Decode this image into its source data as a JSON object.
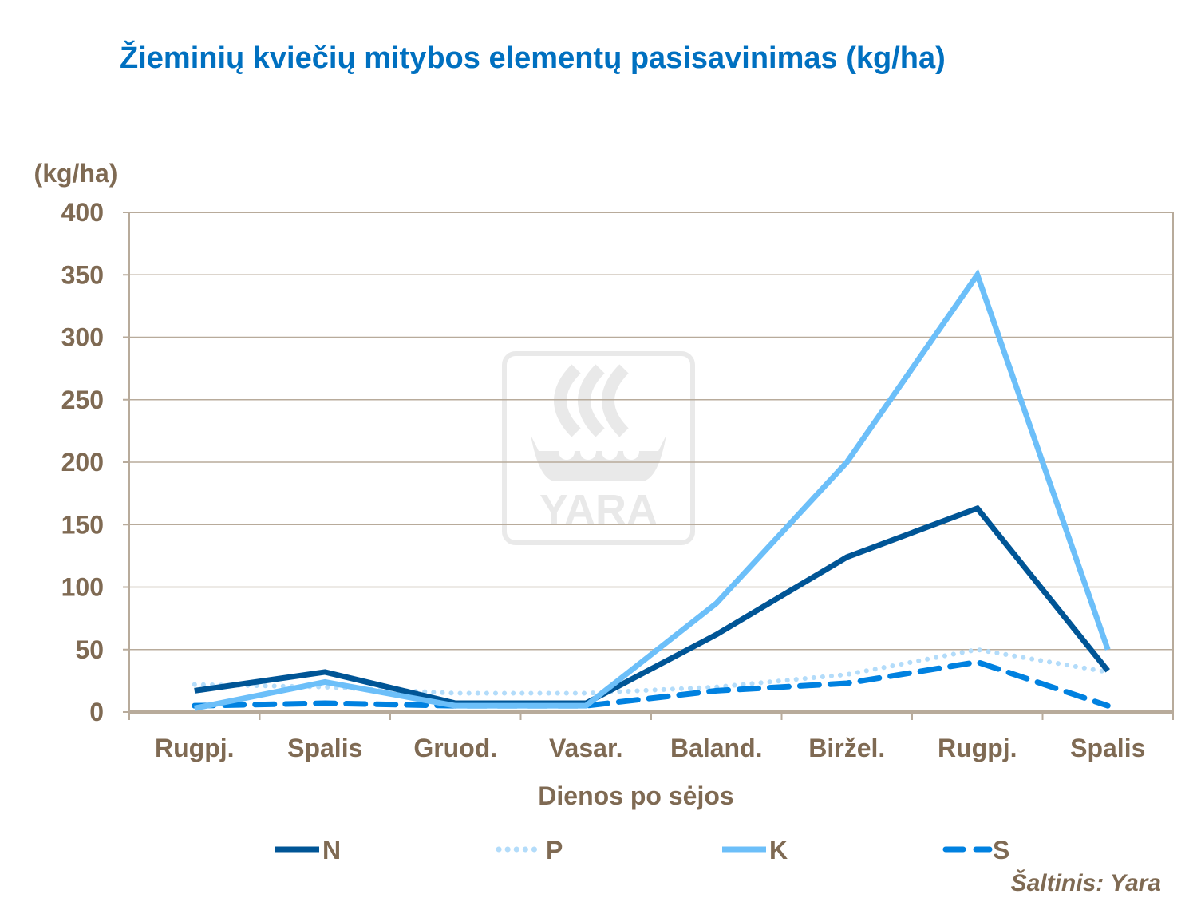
{
  "chart_data": {
    "type": "line",
    "title": "Žieminių kviečių mitybos elementų pasisavinimas (kg/ha)",
    "ylabel": "(kg/ha)",
    "xlabel": "Dienos po sėjos",
    "categories": [
      "Rugpj.",
      "Spalis",
      "Gruod.",
      "Vasar.",
      "Baland.",
      "Biržel.",
      "Rugpj.",
      "Spalis"
    ],
    "ylim": [
      0,
      400
    ],
    "yticks": [
      "0",
      "50",
      "100",
      "150",
      "200",
      "250",
      "300",
      "350",
      "400"
    ],
    "grid": true,
    "legend_placement": "bottom",
    "series": [
      {
        "name": "N",
        "values": [
          17,
          32,
          7,
          7,
          62,
          124,
          163,
          33
        ],
        "color": "#005596",
        "style": "solid"
      },
      {
        "name": "P",
        "values": [
          22,
          20,
          15,
          15,
          20,
          30,
          50,
          32
        ],
        "color": "#b3dcfa",
        "style": "dotted"
      },
      {
        "name": "K",
        "values": [
          3,
          24,
          5,
          5,
          87,
          200,
          350,
          50
        ],
        "color": "#6cbff9",
        "style": "solid"
      },
      {
        "name": "S",
        "values": [
          5,
          7,
          5,
          5,
          17,
          23,
          40,
          5
        ],
        "color": "#0081e0",
        "style": "dashed"
      }
    ]
  },
  "source": "Šaltinis:  Yara",
  "watermark": "YARA"
}
